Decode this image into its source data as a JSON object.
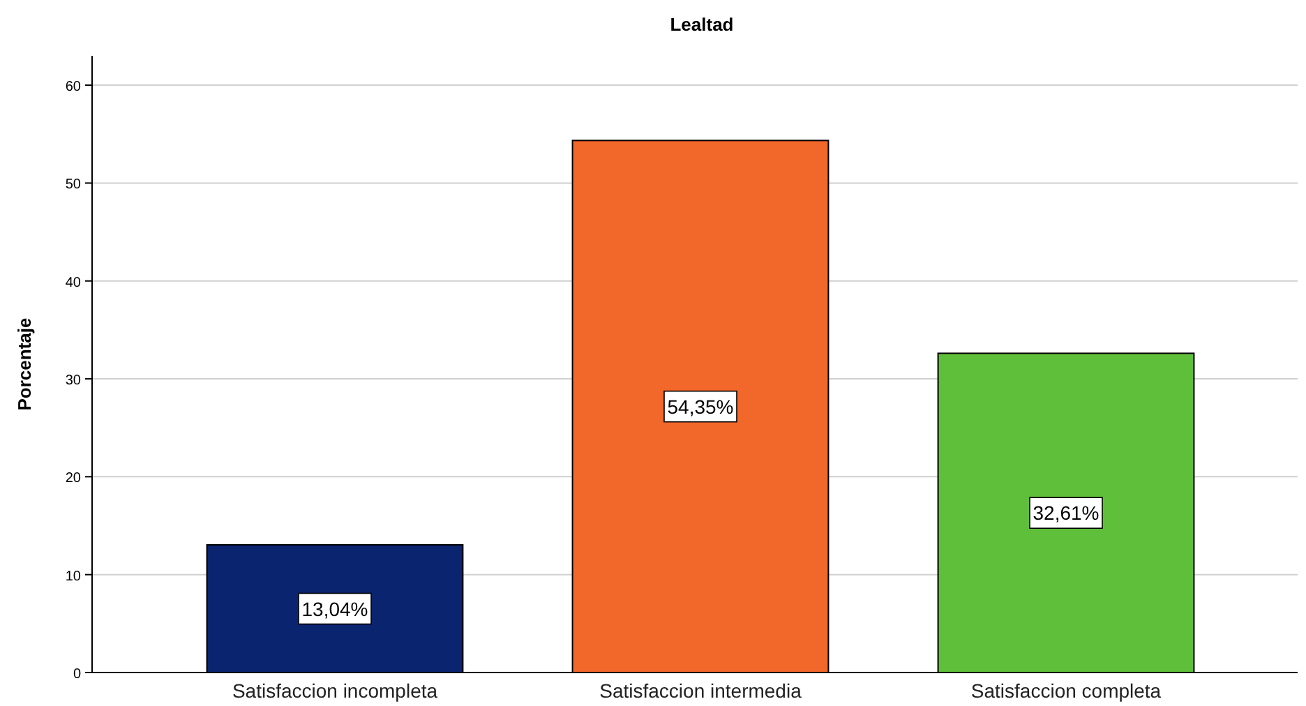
{
  "chart_data": {
    "type": "bar",
    "title": "Lealtad",
    "ylabel": "Porcentaje",
    "categories": [
      "Satisfaccion incompleta",
      "Satisfaccion intermedia",
      "Satisfaccion completa"
    ],
    "values": [
      13.04,
      54.35,
      32.61
    ],
    "colors": [
      "#0b2470",
      "#f2672a",
      "#5fbf3a"
    ],
    "value_labels": [
      "13,04%",
      "54,35%",
      "32,61%"
    ],
    "ylim": [
      0,
      63
    ],
    "yticks": [
      0,
      10,
      20,
      30,
      40,
      50,
      60
    ],
    "grid": "y"
  }
}
